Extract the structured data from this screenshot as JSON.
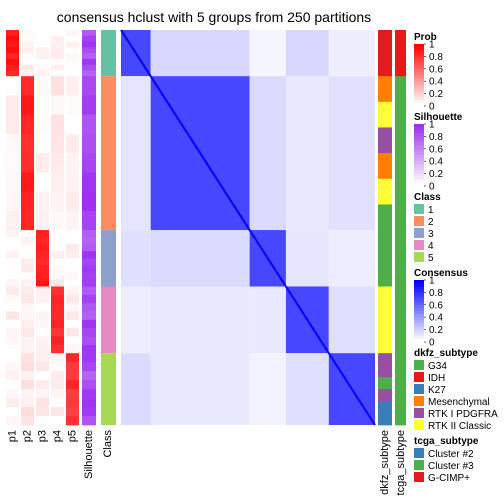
{
  "chart_data": {
    "type": "heatmap",
    "title": "consensus hclust with 5 groups from 250 partitions",
    "groups": [
      {
        "class": 1,
        "size": 0.09
      },
      {
        "class": 2,
        "size": 0.3
      },
      {
        "class": 3,
        "size": 0.11
      },
      {
        "class": 4,
        "size": 0.13
      },
      {
        "class": 5,
        "size": 0.14
      }
    ],
    "prob_columns": [
      "p1",
      "p2",
      "p3",
      "p4",
      "p5"
    ],
    "prob_means": [
      [
        0.9,
        0.04,
        0.02,
        0.02,
        0.02
      ],
      [
        0.02,
        0.85,
        0.03,
        0.06,
        0.04
      ],
      [
        0.01,
        0.05,
        0.88,
        0.03,
        0.03
      ],
      [
        0.04,
        0.05,
        0.02,
        0.85,
        0.04
      ],
      [
        0.02,
        0.08,
        0.05,
        0.05,
        0.8
      ]
    ],
    "silhouette_label": "Silhouette",
    "class_label": "Class",
    "annotation_columns": [
      "dkfz_subtype",
      "tcga_subtype"
    ],
    "legends": [
      {
        "title": "Prob",
        "type": "continuous",
        "ticks": [
          "1",
          "0.8",
          "0.6",
          "0.4",
          "0.2",
          "0"
        ],
        "colors": [
          "#ffffff",
          "#ff0000"
        ]
      },
      {
        "title": "Silhouette",
        "type": "continuous",
        "ticks": [
          "1",
          "0.8",
          "0.6",
          "0.4",
          "0.2",
          "0"
        ],
        "colors": [
          "#ffffff",
          "#9e2ff0"
        ]
      },
      {
        "title": "Class",
        "type": "discrete",
        "items": [
          {
            "label": "1",
            "color": "#66c2a5"
          },
          {
            "label": "2",
            "color": "#fc8d62"
          },
          {
            "label": "3",
            "color": "#8da0cb"
          },
          {
            "label": "4",
            "color": "#e78ac3"
          },
          {
            "label": "5",
            "color": "#a6d854"
          }
        ]
      },
      {
        "title": "Consensus",
        "type": "continuous",
        "ticks": [
          "1",
          "0.8",
          "0.6",
          "0.4",
          "0.2",
          "0"
        ],
        "colors": [
          "#ffffff",
          "#0000ff"
        ]
      },
      {
        "title": "dkfz_subtype",
        "type": "discrete",
        "items": [
          {
            "label": "G34",
            "color": "#4daf4a"
          },
          {
            "label": "IDH",
            "color": "#e41a1c"
          },
          {
            "label": "K27",
            "color": "#377eb8"
          },
          {
            "label": "Mesenchymal",
            "color": "#ff7f00"
          },
          {
            "label": "RTK I PDGFRA",
            "color": "#984ea3"
          },
          {
            "label": "RTK II Classic",
            "color": "#ffff33"
          }
        ]
      },
      {
        "title": "tcga_subtype",
        "type": "discrete",
        "items": [
          {
            "label": "Cluster #2",
            "color": "#377eb8"
          },
          {
            "label": "Cluster #3",
            "color": "#4daf4a"
          },
          {
            "label": "G-CIMP+",
            "color": "#e41a1c"
          }
        ]
      }
    ],
    "grid": false,
    "legend_placement": "right"
  }
}
